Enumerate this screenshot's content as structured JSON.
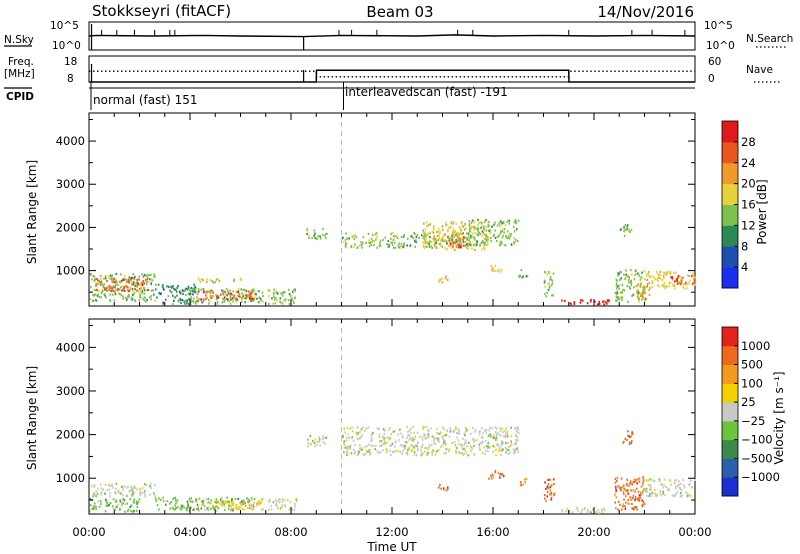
{
  "header": {
    "station": "Stokkseyri (fitACF)",
    "beam": "Beam 03",
    "date": "14/Nov/2016"
  },
  "chart_data": [
    {
      "type": "line",
      "panel": "N.Sky / N.Search",
      "left_label": "N.Sky",
      "right_label": "N.Search",
      "left_ticks": [
        "10^5",
        "10^0"
      ],
      "right_ticks": [
        "10^5",
        "10^0"
      ],
      "series": [
        {
          "name": "N.Sky",
          "style": "solid",
          "x": [
            0,
            0.3,
            2.5,
            4.5,
            6,
            8.5,
            10,
            13,
            14.5,
            16,
            18,
            20,
            22,
            24
          ],
          "y": [
            2.5,
            2.6,
            2.5,
            2.6,
            2.5,
            2.4,
            2.6,
            2.5,
            2.7,
            2.5,
            2.6,
            2.5,
            2.6,
            2.5
          ]
        }
      ],
      "spikes_x": [
        0.1,
        0.5,
        1.1,
        1.8,
        2.6,
        3.2,
        3.4,
        9.9,
        10.4,
        11.4,
        14.6,
        15.2,
        19.0,
        21.5,
        22.3,
        23.6
      ],
      "dropout_x": [
        8.5
      ]
    },
    {
      "type": "line",
      "panel": "Freq / Nave",
      "left_label": "Freq.",
      "left_unit": "[MHz]",
      "right_label": "Nave",
      "left_ticks": [
        "18",
        "8"
      ],
      "right_ticks": [
        "60",
        "0"
      ],
      "series": [
        {
          "name": "Freq.",
          "style": "solid",
          "x": [
            0,
            9,
            9.01,
            19,
            19.01,
            24
          ],
          "y": [
            8,
            8,
            13,
            13,
            8,
            8
          ]
        },
        {
          "name": "Nave",
          "style": "dotted",
          "x": [
            0,
            9,
            9.01,
            19,
            19.01,
            24
          ],
          "y": [
            25,
            25,
            12,
            12,
            25,
            25
          ]
        }
      ]
    },
    {
      "type": "table",
      "panel": "CPID",
      "label": "CPID",
      "segments": [
        {
          "start_hour": 0,
          "end_hour": 10,
          "label": "normal (fast) 151"
        },
        {
          "start_hour": 10,
          "end_hour": 24,
          "label": "interleavedscan (fast) -191"
        }
      ]
    },
    {
      "type": "heatmap",
      "panel": "Power",
      "ylabel": "Slant Range [km]",
      "ylim": [
        180,
        4650
      ],
      "xlim": [
        0,
        24
      ],
      "yticks": [
        1000,
        2000,
        3000,
        4000
      ],
      "colorbar": {
        "label": "Power [dB]",
        "ticks": [
          "4",
          "8",
          "12",
          "16",
          "20",
          "24",
          "28"
        ],
        "colors": [
          "#1b2ff0",
          "#1d4fb0",
          "#2a8a55",
          "#7dc04b",
          "#e8d23a",
          "#f19a2b",
          "#e9571f",
          "#de1a1a"
        ]
      },
      "regions": [
        {
          "x0": 0.0,
          "x1": 2.6,
          "y0": 300,
          "y1": 950,
          "level": 3
        },
        {
          "x0": 0.2,
          "x1": 2.4,
          "y0": 550,
          "y1": 850,
          "level": 6
        },
        {
          "x0": 2.6,
          "x1": 4.2,
          "y0": 250,
          "y1": 700,
          "level": 2
        },
        {
          "x0": 3.8,
          "x1": 8.2,
          "y0": 250,
          "y1": 600,
          "level": 3
        },
        {
          "x0": 4.2,
          "x1": 6.6,
          "y0": 350,
          "y1": 550,
          "level": 6
        },
        {
          "x0": 4.0,
          "x1": 6.0,
          "y0": 750,
          "y1": 850,
          "level": 4
        },
        {
          "x0": 8.6,
          "x1": 9.4,
          "y0": 1750,
          "y1": 2000,
          "level": 3
        },
        {
          "x0": 10.0,
          "x1": 15.0,
          "y0": 1550,
          "y1": 1900,
          "level": 3
        },
        {
          "x0": 13.2,
          "x1": 15.8,
          "y0": 1500,
          "y1": 2150,
          "level": 4
        },
        {
          "x0": 14.2,
          "x1": 14.9,
          "y0": 1550,
          "y1": 1850,
          "level": 6
        },
        {
          "x0": 15.0,
          "x1": 17.0,
          "y0": 1600,
          "y1": 2200,
          "level": 3
        },
        {
          "x0": 13.8,
          "x1": 14.2,
          "y0": 700,
          "y1": 900,
          "level": 5
        },
        {
          "x0": 15.8,
          "x1": 16.4,
          "y0": 1000,
          "y1": 1200,
          "level": 4
        },
        {
          "x0": 17.0,
          "x1": 17.4,
          "y0": 850,
          "y1": 1050,
          "level": 3
        },
        {
          "x0": 18.0,
          "x1": 18.4,
          "y0": 400,
          "y1": 1000,
          "level": 3
        },
        {
          "x0": 18.6,
          "x1": 20.6,
          "y0": 230,
          "y1": 350,
          "level": 7
        },
        {
          "x0": 20.8,
          "x1": 22.0,
          "y0": 300,
          "y1": 1050,
          "level": 3
        },
        {
          "x0": 21.6,
          "x1": 22.2,
          "y0": 350,
          "y1": 750,
          "level": 5
        },
        {
          "x0": 21.8,
          "x1": 24.0,
          "y0": 600,
          "y1": 1000,
          "level": 4
        },
        {
          "x0": 23.0,
          "x1": 24.0,
          "y0": 700,
          "y1": 900,
          "level": 6
        },
        {
          "x0": 21.0,
          "x1": 21.5,
          "y0": 1800,
          "y1": 2100,
          "level": 3
        }
      ]
    },
    {
      "type": "heatmap",
      "panel": "Velocity",
      "ylabel": "Slant Range [km]",
      "xlabel": "Time UT",
      "ylim": [
        180,
        4650
      ],
      "xlim": [
        0,
        24
      ],
      "yticks": [
        1000,
        2000,
        3000,
        4000
      ],
      "xticks": [
        "00:00",
        "04:00",
        "08:00",
        "12:00",
        "16:00",
        "20:00",
        "00:00"
      ],
      "colorbar": {
        "label": "Velocity [m s⁻¹]",
        "ticks": [
          "1000",
          "500",
          "100",
          "25",
          "−25",
          "−100",
          "−500",
          "−1000"
        ],
        "colors": [
          "#1b2fd0",
          "#2d5fa8",
          "#3b8a4a",
          "#6ac43d",
          "#c8c8c4",
          "#f5d000",
          "#f29a20",
          "#ed6a1d",
          "#e2231b"
        ]
      },
      "regions": [
        {
          "x0": 0.0,
          "x1": 2.6,
          "y0": 600,
          "y1": 900,
          "level": 4
        },
        {
          "x0": 0.0,
          "x1": 2.0,
          "y0": 250,
          "y1": 550,
          "level": 3
        },
        {
          "x0": 2.6,
          "x1": 6.6,
          "y0": 280,
          "y1": 580,
          "level": 3
        },
        {
          "x0": 4.2,
          "x1": 6.8,
          "y0": 300,
          "y1": 500,
          "level": 5
        },
        {
          "x0": 6.8,
          "x1": 8.2,
          "y0": 300,
          "y1": 550,
          "level": 4
        },
        {
          "x0": 8.6,
          "x1": 9.4,
          "y0": 1750,
          "y1": 2000,
          "level": 4
        },
        {
          "x0": 10.0,
          "x1": 17.0,
          "y0": 1550,
          "y1": 2200,
          "level": 4
        },
        {
          "x0": 13.8,
          "x1": 14.2,
          "y0": 700,
          "y1": 900,
          "level": 7
        },
        {
          "x0": 15.8,
          "x1": 16.4,
          "y0": 1000,
          "y1": 1200,
          "level": 7
        },
        {
          "x0": 17.0,
          "x1": 17.4,
          "y0": 850,
          "y1": 1050,
          "level": 6
        },
        {
          "x0": 18.0,
          "x1": 18.4,
          "y0": 400,
          "y1": 1000,
          "level": 7
        },
        {
          "x0": 18.6,
          "x1": 20.6,
          "y0": 230,
          "y1": 350,
          "level": 4
        },
        {
          "x0": 20.8,
          "x1": 22.0,
          "y0": 300,
          "y1": 1050,
          "level": 7
        },
        {
          "x0": 21.8,
          "x1": 24.0,
          "y0": 600,
          "y1": 1000,
          "level": 4
        },
        {
          "x0": 21.0,
          "x1": 21.5,
          "y0": 1800,
          "y1": 2100,
          "level": 7
        }
      ]
    }
  ]
}
